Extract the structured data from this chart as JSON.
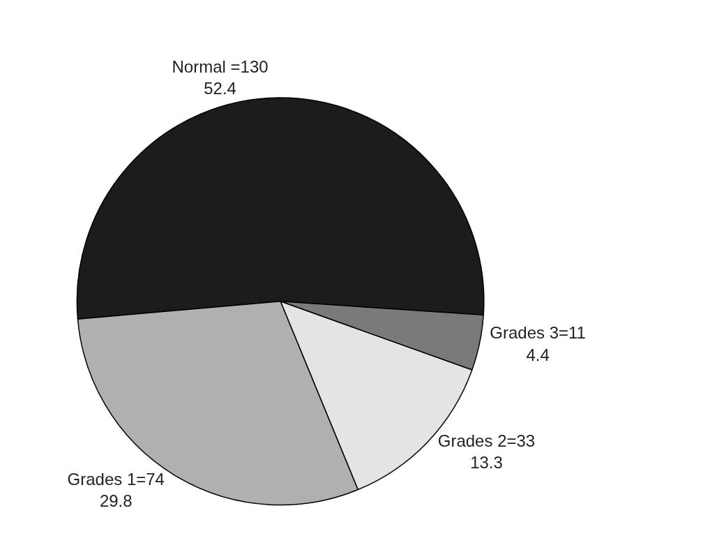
{
  "chart_data": {
    "type": "pie",
    "categories": [
      "Normal =130",
      "Grades 3=11",
      "Grades 2=33",
      "Grades 1=74"
    ],
    "values": [
      52.4,
      4.4,
      13.3,
      29.8
    ],
    "data_labels": true,
    "colors": [
      "#1c1c1c",
      "#7a7a7a",
      "#e4e4e4",
      "#b0b0b0"
    ],
    "legend": false
  }
}
